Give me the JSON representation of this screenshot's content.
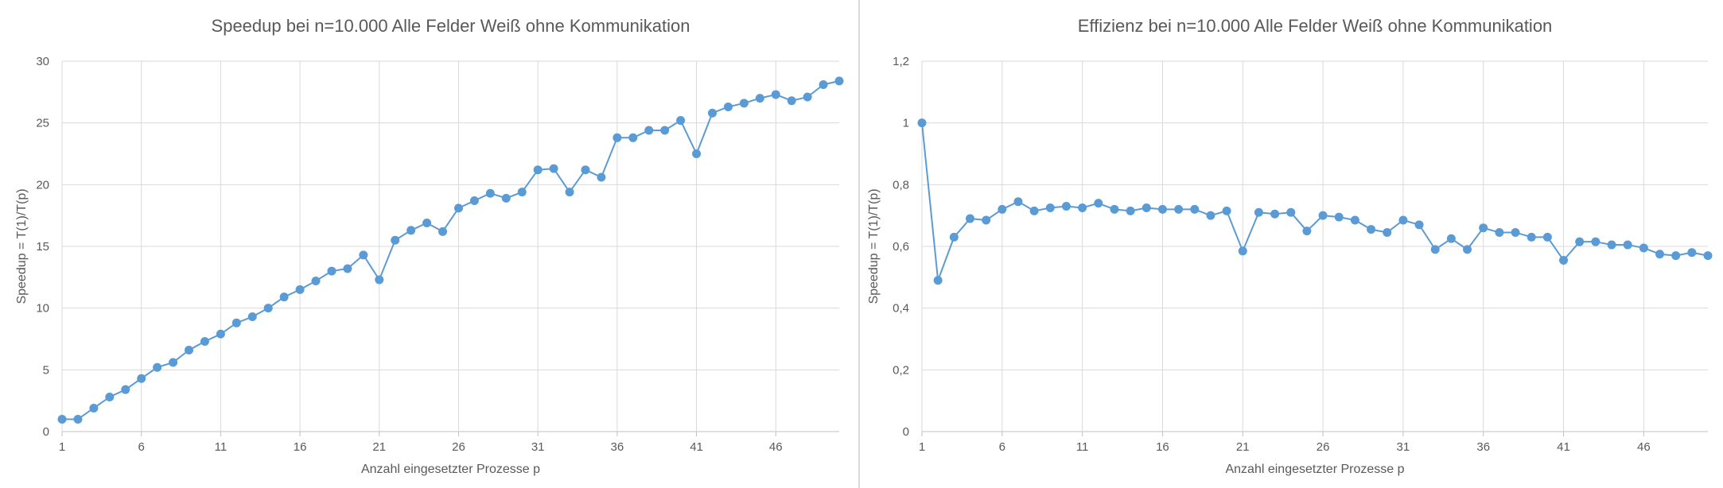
{
  "colors": {
    "series": "#5b9bd5",
    "grid": "#d9d9d9",
    "axis": "#bfbfbf",
    "text": "#595959",
    "title": "#595959"
  },
  "chart_data": [
    {
      "type": "line",
      "title": "Speedup bei n=10.000 Alle Felder Weiß ohne Kommunikation",
      "xlabel": "Anzahl eingesetzter Prozesse p",
      "ylabel": "Speedup = T(1)/T(p)",
      "xlim": [
        1,
        50
      ],
      "ylim": [
        0,
        30
      ],
      "grid": true,
      "marker": "circle",
      "x_tick_labels": [
        "1",
        "6",
        "11",
        "16",
        "21",
        "26",
        "31",
        "36",
        "41",
        "46"
      ],
      "y_tick_labels": [
        "0",
        "5",
        "10",
        "15",
        "20",
        "25",
        "30"
      ],
      "x": [
        1,
        2,
        3,
        4,
        5,
        6,
        7,
        8,
        9,
        10,
        11,
        12,
        13,
        14,
        15,
        16,
        17,
        18,
        19,
        20,
        21,
        22,
        23,
        24,
        25,
        26,
        27,
        28,
        29,
        30,
        31,
        32,
        33,
        34,
        35,
        36,
        37,
        38,
        39,
        40,
        41,
        42,
        43,
        44,
        45,
        46,
        47,
        48,
        49,
        50
      ],
      "series": [
        {
          "values": [
            1.0,
            1.0,
            1.9,
            2.8,
            3.4,
            4.3,
            5.2,
            5.6,
            6.6,
            7.3,
            7.9,
            8.8,
            9.3,
            10.0,
            10.9,
            11.5,
            12.2,
            13.0,
            13.2,
            14.3,
            12.3,
            15.5,
            16.3,
            16.9,
            16.2,
            18.1,
            18.7,
            19.3,
            18.9,
            19.4,
            21.2,
            21.3,
            19.4,
            21.2,
            20.6,
            23.8,
            23.8,
            24.4,
            24.4,
            25.2,
            22.5,
            25.8,
            26.3,
            26.6,
            27.0,
            27.3,
            26.8,
            27.1,
            28.1,
            28.4
          ]
        }
      ]
    },
    {
      "type": "line",
      "title": "Effizienz bei n=10.000 Alle Felder Weiß ohne Kommunikation",
      "xlabel": "Anzahl eingesetzter Prozesse p",
      "ylabel": "Speedup = T(1)/T(p)",
      "xlim": [
        1,
        50
      ],
      "ylim": [
        0,
        1.2
      ],
      "grid": true,
      "marker": "circle",
      "x_tick_labels": [
        "1",
        "6",
        "11",
        "16",
        "21",
        "26",
        "31",
        "36",
        "41",
        "46"
      ],
      "y_tick_labels": [
        "0",
        "0,2",
        "0,4",
        "0,6",
        "0,8",
        "1",
        "1,2"
      ],
      "x": [
        1,
        2,
        3,
        4,
        5,
        6,
        7,
        8,
        9,
        10,
        11,
        12,
        13,
        14,
        15,
        16,
        17,
        18,
        19,
        20,
        21,
        22,
        23,
        24,
        25,
        26,
        27,
        28,
        29,
        30,
        31,
        32,
        33,
        34,
        35,
        36,
        37,
        38,
        39,
        40,
        41,
        42,
        43,
        44,
        45,
        46,
        47,
        48,
        49,
        50
      ],
      "series": [
        {
          "values": [
            1.0,
            0.49,
            0.63,
            0.69,
            0.685,
            0.72,
            0.745,
            0.715,
            0.725,
            0.73,
            0.725,
            0.74,
            0.72,
            0.715,
            0.725,
            0.72,
            0.72,
            0.72,
            0.7,
            0.715,
            0.585,
            0.71,
            0.705,
            0.71,
            0.65,
            0.7,
            0.695,
            0.685,
            0.655,
            0.645,
            0.685,
            0.67,
            0.59,
            0.625,
            0.59,
            0.66,
            0.645,
            0.645,
            0.63,
            0.63,
            0.555,
            0.615,
            0.615,
            0.605,
            0.605,
            0.595,
            0.575,
            0.57,
            0.58,
            0.57
          ]
        }
      ]
    }
  ]
}
